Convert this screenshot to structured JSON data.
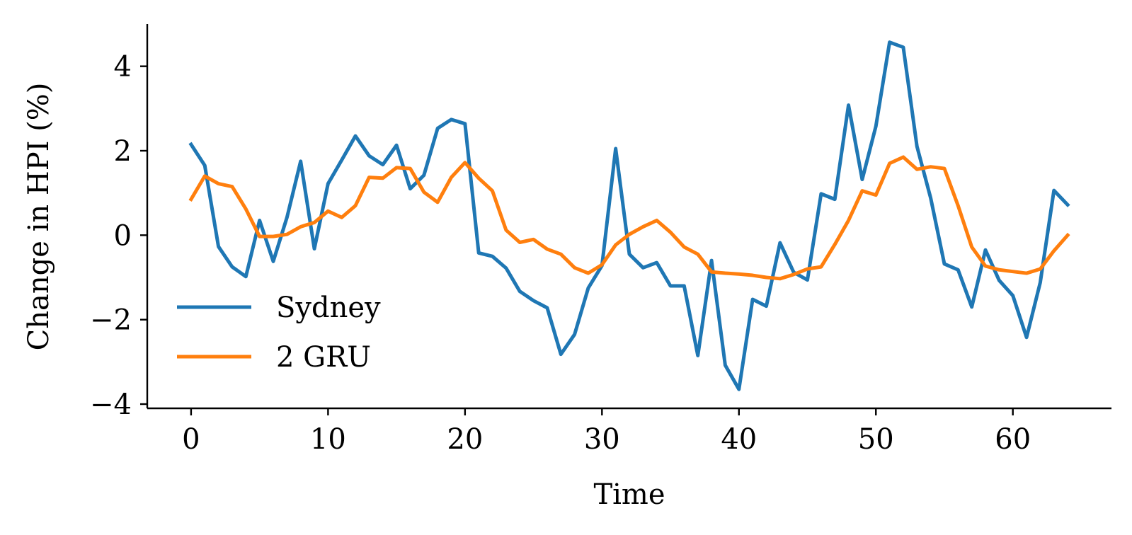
{
  "chart_data": {
    "type": "line",
    "title": "",
    "xlabel": "Time",
    "ylabel": "Change in HPI (%)",
    "xlim": [
      -3.2,
      67.2
    ],
    "ylim": [
      -4.1,
      5.0
    ],
    "xticks": [
      0,
      10,
      20,
      30,
      40,
      50,
      60
    ],
    "yticks": [
      -4,
      -2,
      0,
      2,
      4
    ],
    "xtick_labels": [
      "0",
      "10",
      "20",
      "30",
      "40",
      "50",
      "60"
    ],
    "ytick_labels": [
      "−4",
      "−2",
      "0",
      "2",
      "4"
    ],
    "grid": false,
    "legend_position": "lower-left",
    "x": [
      0,
      1,
      2,
      3,
      4,
      5,
      6,
      7,
      8,
      9,
      10,
      11,
      12,
      13,
      14,
      15,
      16,
      17,
      18,
      19,
      20,
      21,
      22,
      23,
      24,
      25,
      26,
      27,
      28,
      29,
      30,
      31,
      32,
      33,
      34,
      35,
      36,
      37,
      38,
      39,
      40,
      41,
      42,
      43,
      44,
      45,
      46,
      47,
      48,
      49,
      50,
      51,
      52,
      53,
      54,
      55,
      56,
      57,
      58,
      59,
      60,
      61,
      62,
      63,
      64
    ],
    "series": [
      {
        "name": "Sydney",
        "color": "#1f77b4",
        "values": [
          2.15,
          1.65,
          -0.27,
          -0.75,
          -0.98,
          0.35,
          -0.62,
          0.42,
          1.75,
          -0.32,
          1.22,
          1.78,
          2.35,
          1.88,
          1.67,
          2.13,
          1.1,
          1.42,
          2.53,
          2.74,
          2.64,
          -0.42,
          -0.5,
          -0.78,
          -1.33,
          -1.55,
          -1.72,
          -2.82,
          -2.35,
          -1.25,
          -0.72,
          2.05,
          -0.45,
          -0.77,
          -0.65,
          -1.2,
          -1.2,
          -2.85,
          -0.6,
          -3.08,
          -3.65,
          -1.52,
          -1.68,
          -0.18,
          -0.88,
          -1.06,
          0.98,
          0.85,
          3.08,
          1.32,
          2.58,
          4.57,
          4.45,
          2.1,
          0.88,
          -0.68,
          -0.82,
          -1.7,
          -0.35,
          -1.07,
          -1.43,
          -2.42,
          -1.12,
          1.06,
          0.72
        ]
      },
      {
        "name": "2 GRU",
        "color": "#ff7f0e",
        "values": [
          0.85,
          1.4,
          1.22,
          1.15,
          0.62,
          -0.03,
          -0.03,
          0.02,
          0.2,
          0.3,
          0.57,
          0.42,
          0.7,
          1.37,
          1.35,
          1.6,
          1.58,
          1.02,
          0.78,
          1.37,
          1.72,
          1.35,
          1.05,
          0.12,
          -0.17,
          -0.1,
          -0.33,
          -0.45,
          -0.77,
          -0.9,
          -0.7,
          -0.23,
          0.02,
          0.2,
          0.35,
          0.07,
          -0.28,
          -0.45,
          -0.87,
          -0.9,
          -0.92,
          -0.95,
          -1.0,
          -1.03,
          -0.93,
          -0.8,
          -0.75,
          -0.22,
          0.35,
          1.05,
          0.95,
          1.7,
          1.85,
          1.56,
          1.62,
          1.58,
          0.7,
          -0.28,
          -0.73,
          -0.82,
          -0.86,
          -0.9,
          -0.8,
          -0.37,
          0.0
        ]
      }
    ]
  }
}
